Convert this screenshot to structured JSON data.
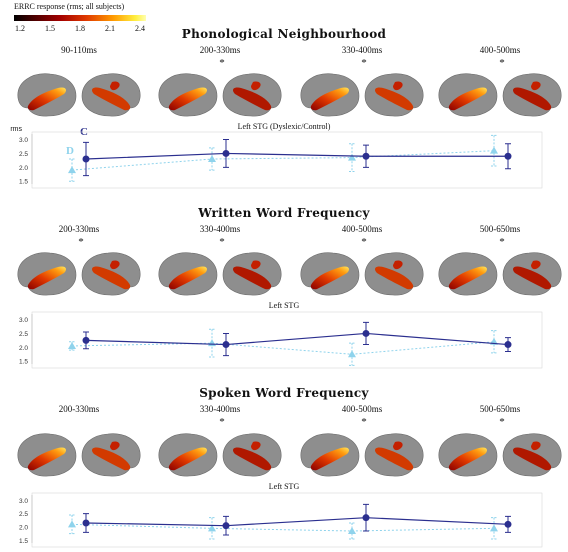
{
  "colorbar": {
    "title": "ERRC response (rms; all subjects)",
    "ticks": [
      "1.2",
      "1.5",
      "1.8",
      "2.1",
      "2.4"
    ]
  },
  "legend": {
    "control": "C",
    "dyslexic": "D"
  },
  "y_unit": "rms",
  "colors": {
    "control": "#2b2f8f",
    "dyslexic": "#8fd3ec",
    "brain": "#8e8e8e"
  },
  "sections": [
    {
      "title": "Phonological Neighbourhood",
      "windows": [
        {
          "label": "90-110ms",
          "star": ""
        },
        {
          "label": "200-330ms",
          "star": "*"
        },
        {
          "label": "330-400ms",
          "star": "*"
        },
        {
          "label": "400-500ms",
          "star": "*"
        }
      ],
      "chart_label": "Left STG (Dyslexic/Control)"
    },
    {
      "title": "Written Word Frequency",
      "windows": [
        {
          "label": "200-330ms",
          "star": "*"
        },
        {
          "label": "330-400ms",
          "star": "*"
        },
        {
          "label": "400-500ms",
          "star": "*"
        },
        {
          "label": "500-650ms",
          "star": "*"
        }
      ],
      "chart_label": "Left STG"
    },
    {
      "title": "Spoken Word Frequency",
      "windows": [
        {
          "label": "200-330ms",
          "star": ""
        },
        {
          "label": "330-400ms",
          "star": "*"
        },
        {
          "label": "400-500ms",
          "star": "*"
        },
        {
          "label": "500-650ms",
          "star": "*"
        }
      ],
      "chart_label": "Left STG"
    }
  ],
  "chart_data": [
    {
      "type": "line",
      "title": "Left STG (Dyslexic/Control)",
      "ylabel": "rms",
      "yticks": [
        "1.5",
        "2.0",
        "2.5",
        "3.0"
      ],
      "ylim": [
        1.4,
        3.2
      ],
      "categories": [
        "90-110ms",
        "200-330ms",
        "330-400ms",
        "400-500ms"
      ],
      "series": [
        {
          "name": "C",
          "values": [
            2.3,
            2.5,
            2.4,
            2.4
          ],
          "err": [
            0.6,
            0.5,
            0.4,
            0.45
          ]
        },
        {
          "name": "D",
          "values": [
            1.9,
            2.3,
            2.35,
            2.6
          ],
          "err": [
            0.4,
            0.4,
            0.5,
            0.55
          ]
        }
      ]
    },
    {
      "type": "line",
      "title": "Left STG",
      "yticks": [
        "1.5",
        "2.0",
        "2.5",
        "3.0"
      ],
      "ylim": [
        1.4,
        3.2
      ],
      "categories": [
        "200-330ms",
        "330-400ms",
        "400-500ms",
        "500-650ms"
      ],
      "series": [
        {
          "values": [
            2.25,
            2.1,
            2.5,
            2.1
          ],
          "err": [
            0.3,
            0.4,
            0.4,
            0.25
          ]
        },
        {
          "values": [
            2.05,
            2.15,
            1.75,
            2.2
          ],
          "err": [
            0.15,
            0.5,
            0.4,
            0.4
          ]
        }
      ]
    },
    {
      "type": "line",
      "title": "Left STG",
      "yticks": [
        "1.5",
        "2.0",
        "2.5",
        "3.0"
      ],
      "ylim": [
        1.4,
        3.2
      ],
      "categories": [
        "200-330ms",
        "330-400ms",
        "400-500ms",
        "500-650ms"
      ],
      "series": [
        {
          "values": [
            2.15,
            2.05,
            2.35,
            2.1
          ],
          "err": [
            0.35,
            0.35,
            0.5,
            0.3
          ]
        },
        {
          "values": [
            2.1,
            1.95,
            1.85,
            1.95
          ],
          "err": [
            0.35,
            0.4,
            0.3,
            0.4
          ]
        }
      ]
    }
  ]
}
